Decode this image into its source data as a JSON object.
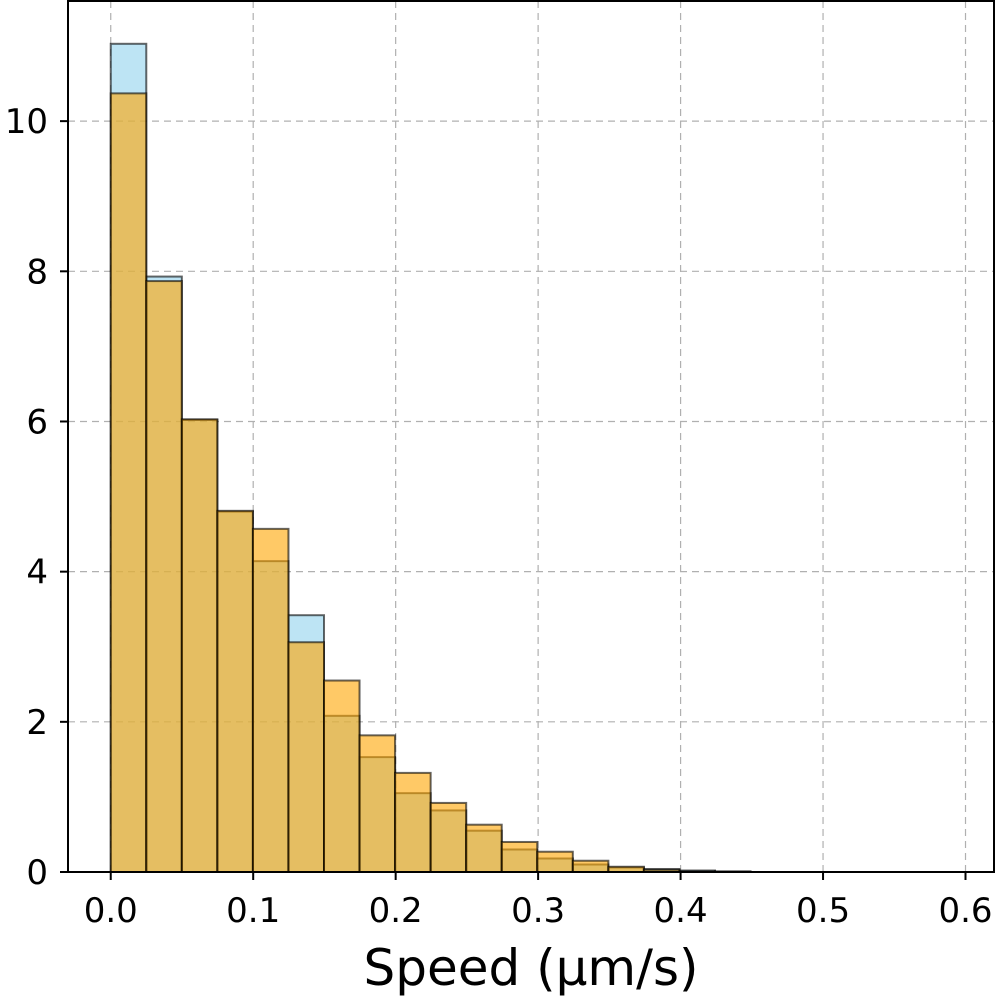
{
  "chart_data": {
    "type": "bar",
    "xlabel": "Speed (μm/s)",
    "ylabel": "",
    "xlim": [
      -0.03,
      0.62
    ],
    "ylim": [
      0,
      11.6
    ],
    "grid": true,
    "x_ticks": [
      "0.0",
      "0.1",
      "0.2",
      "0.3",
      "0.4",
      "0.5",
      "0.6"
    ],
    "y_ticks": [
      "0",
      "2",
      "4",
      "6",
      "8",
      "10"
    ],
    "series": [
      {
        "color": "#87ceeb",
        "bin_start": 0.0,
        "bin_width": 0.02495,
        "values": [
          11.03,
          7.93,
          6.02,
          4.8,
          4.14,
          3.42,
          2.08,
          1.53,
          1.05,
          0.82,
          0.55,
          0.3,
          0.18,
          0.1,
          0.06,
          0.04,
          0.02,
          0.01
        ]
      },
      {
        "color": "#ffa500",
        "bin_start": 0.0,
        "bin_width": 0.02495,
        "values": [
          10.37,
          7.87,
          6.03,
          4.81,
          4.57,
          3.06,
          2.55,
          1.82,
          1.32,
          0.92,
          0.63,
          0.4,
          0.27,
          0.15,
          0.07,
          0.03,
          0.01
        ]
      }
    ]
  }
}
